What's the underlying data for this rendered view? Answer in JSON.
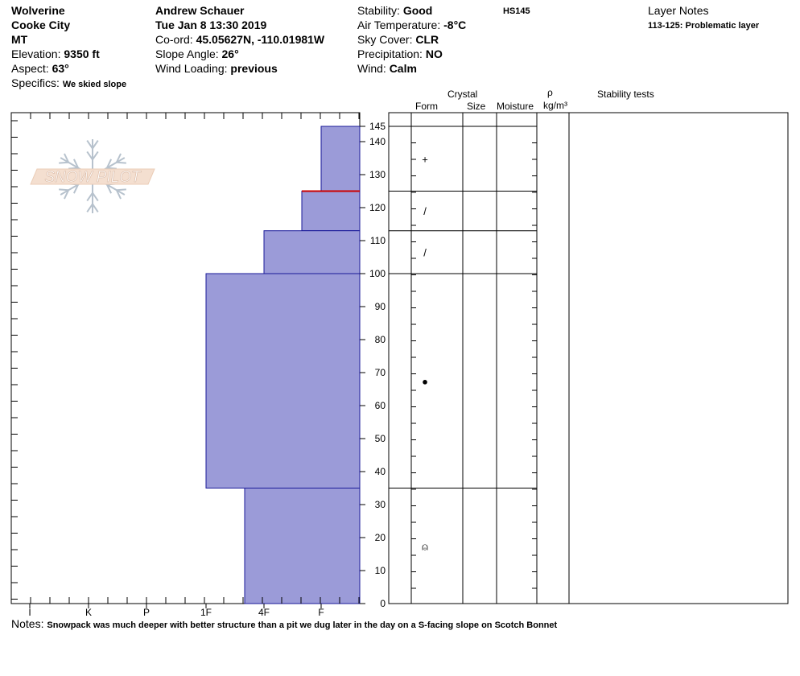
{
  "header": {
    "location": "Wolverine",
    "area": "Cooke City",
    "state": "MT",
    "elevation_label": "Elevation: ",
    "elevation": "9350 ft",
    "aspect_label": "Aspect: ",
    "aspect": "63°",
    "specifics_label": "Specifics: ",
    "specifics": "We skied slope",
    "observer": "Andrew Schauer",
    "datetime": "Tue Jan 8 13:30 2019",
    "coord_label": "Co-ord: ",
    "coord": "45.05627N, -110.01981W",
    "slope_label": "Slope Angle: ",
    "slope": "26°",
    "wind_loading_label": "Wind Loading: ",
    "wind_loading": "previous",
    "stability_label": "Stability: ",
    "stability": "Good",
    "air_temp_label": "Air Temperature: ",
    "air_temp": "-8°C",
    "sky_label": "Sky Cover: ",
    "sky": "CLR",
    "precip_label": "Precipitation: ",
    "precip": "NO",
    "wind_label": "Wind: ",
    "wind": "Calm",
    "hs": "HS145",
    "layer_notes_label": "Layer Notes",
    "layer_note": "113-125: Problematic layer"
  },
  "logo": {
    "text": "SNOW PILOT"
  },
  "columns": {
    "crystal": "Crystal",
    "form": "Form",
    "size": "Size",
    "moisture": "Moisture",
    "rho": "ρ",
    "density_unit": "kg/m³",
    "stability_tests": "Stability tests"
  },
  "notes": {
    "label": "Notes: ",
    "text": "Snowpack was much deeper with better structure than a pit we dug later in the day on a S-facing slope on Scotch Bonnet"
  },
  "chart_data": {
    "type": "bar",
    "title": "",
    "hardness_scale": [
      "I",
      "K",
      "P",
      "1F",
      "4F",
      "F"
    ],
    "depth_axis": {
      "ticks": [
        0,
        10,
        20,
        30,
        40,
        50,
        60,
        70,
        80,
        90,
        100,
        110,
        120,
        130,
        140,
        145
      ],
      "range": [
        0,
        145
      ]
    },
    "layers": [
      {
        "bottom": 125,
        "top": 145,
        "hardness": "F",
        "form_symbol": "+"
      },
      {
        "bottom": 113,
        "top": 125,
        "hardness": "F-4F",
        "form_symbol": "/"
      },
      {
        "bottom": 100,
        "top": 113,
        "hardness": "4F",
        "form_symbol": "/"
      },
      {
        "bottom": 35,
        "top": 100,
        "hardness": "1F",
        "form_symbol": "●"
      },
      {
        "bottom": 0,
        "top": 35,
        "hardness": "4F+",
        "form_symbol": "⍝"
      }
    ],
    "problematic_layer": [
      113,
      125
    ],
    "colors": {
      "fill": "#9b9bd8",
      "edge": "#1a1a99",
      "problem": "#cc0000"
    }
  }
}
